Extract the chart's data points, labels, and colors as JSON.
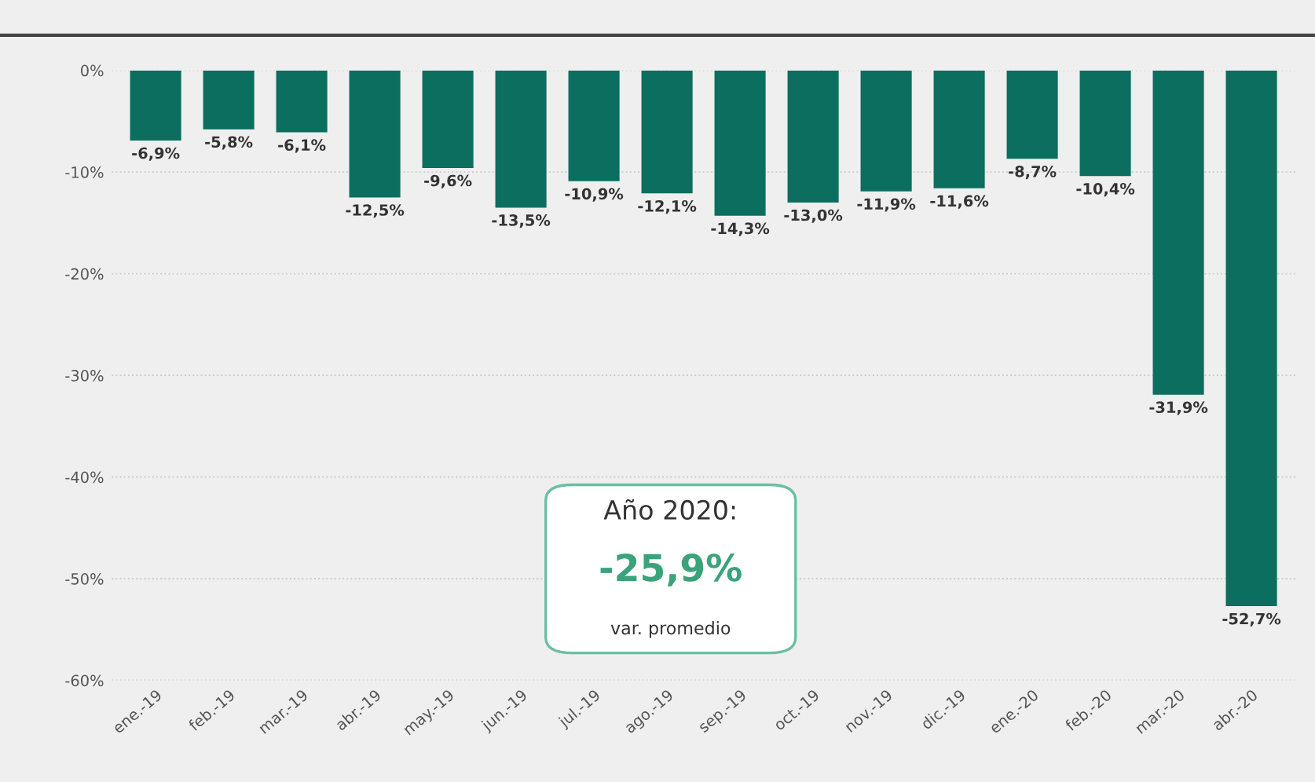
{
  "chart_data": {
    "type": "bar",
    "categories": [
      "ene.-19",
      "feb.-19",
      "mar.-19",
      "abr.-19",
      "may.-19",
      "jun.-19",
      "jul.-19",
      "ago.-19",
      "sep.-19",
      "oct.-19",
      "nov.-19",
      "dic.-19",
      "ene.-20",
      "feb.-20",
      "mar.-20",
      "abr.-20"
    ],
    "values": [
      -6.9,
      -5.8,
      -6.1,
      -12.5,
      -9.6,
      -13.5,
      -10.9,
      -12.1,
      -14.3,
      -13.0,
      -11.9,
      -11.6,
      -8.7,
      -10.4,
      -31.9,
      -52.7
    ],
    "value_labels": [
      "-6,9%",
      "-5,8%",
      "-6,1%",
      "-12,5%",
      "-9,6%",
      "-13,5%",
      "-10,9%",
      "-12,1%",
      "-14,3%",
      "-13,0%",
      "-11,9%",
      "-11,6%",
      "-8,7%",
      "-10,4%",
      "-31,9%",
      "-52,7%"
    ],
    "color": "#0b6e5f",
    "ylim": [
      -60,
      0
    ],
    "yticks": [
      {
        "value": 0,
        "label": "0%"
      },
      {
        "value": -10,
        "label": "-10%"
      },
      {
        "value": -20,
        "label": "-20%"
      },
      {
        "value": -30,
        "label": "-30%"
      },
      {
        "value": -40,
        "label": "-40%"
      },
      {
        "value": -50,
        "label": "-50%"
      },
      {
        "value": -60,
        "label": "-60%"
      }
    ],
    "grid": "y",
    "annotations": [
      "Año 2020:",
      "-25,9%",
      "var. promedio"
    ]
  }
}
